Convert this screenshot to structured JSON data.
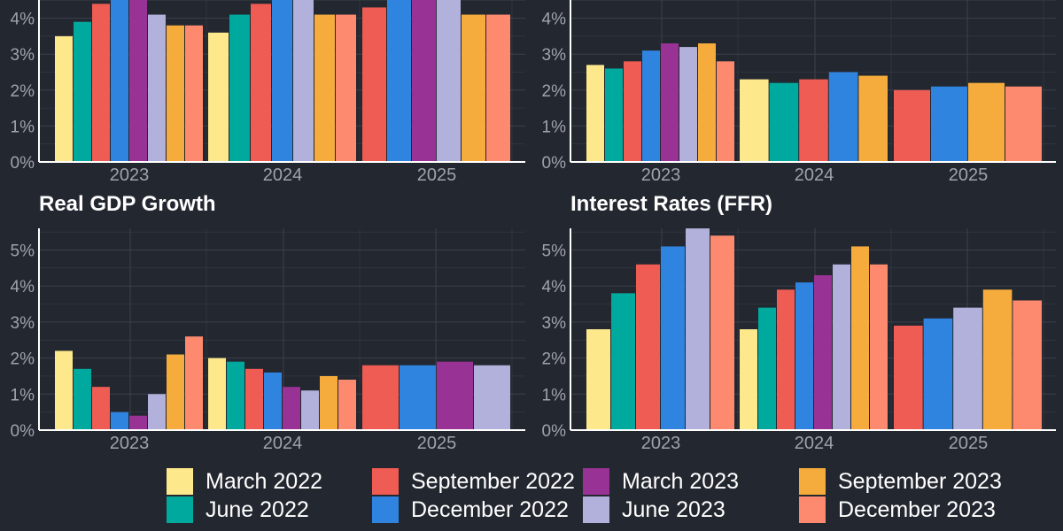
{
  "colors": {
    "background": "#232730",
    "grid": "#3b404b",
    "axis_line": "#ffffff",
    "tick_text": "#9ea3ad",
    "title_text": "#ffffff"
  },
  "legend": [
    {
      "label": "March 2022",
      "color": "#fde98c"
    },
    {
      "label": "June 2022",
      "color": "#00a99d"
    },
    {
      "label": "September 2022",
      "color": "#ef5c53"
    },
    {
      "label": "December 2022",
      "color": "#2f84e0"
    },
    {
      "label": "March 2023",
      "color": "#983294"
    },
    {
      "label": "June 2023",
      "color": "#b1b1db"
    },
    {
      "label": "September 2023",
      "color": "#f6ac3c"
    },
    {
      "label": "December 2023",
      "color": "#fd8a6e"
    }
  ],
  "chart_data": [
    {
      "type": "bar",
      "title": "",
      "categories": [
        "2023",
        "2024",
        "2025"
      ],
      "ylim": [
        0,
        5.6
      ],
      "yticks": [
        "0%",
        "1%",
        "2%",
        "3%",
        "4%"
      ],
      "ytick_values": [
        0,
        1,
        2,
        3,
        4
      ],
      "grid": true,
      "series": [
        {
          "name": "March 2022",
          "values": [
            3.5,
            3.6,
            null
          ]
        },
        {
          "name": "June 2022",
          "values": [
            3.9,
            4.1,
            null
          ]
        },
        {
          "name": "September 2022",
          "values": [
            4.4,
            4.4,
            4.3
          ]
        },
        {
          "name": "December 2022",
          "values": [
            5.0,
            5.0,
            5.0
          ]
        },
        {
          "name": "March 2023",
          "values": [
            5.0,
            null,
            5.0
          ]
        },
        {
          "name": "June 2023",
          "values": [
            4.1,
            5.0,
            5.0
          ]
        },
        {
          "name": "September 2023",
          "values": [
            3.8,
            4.1,
            4.1
          ]
        },
        {
          "name": "December 2023",
          "values": [
            3.8,
            4.1,
            4.1
          ]
        }
      ]
    },
    {
      "type": "bar",
      "title": "",
      "categories": [
        "2023",
        "2024",
        "2025"
      ],
      "ylim": [
        0,
        5.6
      ],
      "yticks": [
        "0%",
        "1%",
        "2%",
        "3%",
        "4%"
      ],
      "ytick_values": [
        0,
        1,
        2,
        3,
        4
      ],
      "grid": true,
      "series": [
        {
          "name": "March 2022",
          "values": [
            2.7,
            2.3,
            null
          ]
        },
        {
          "name": "June 2022",
          "values": [
            2.6,
            2.2,
            null
          ]
        },
        {
          "name": "September 2022",
          "values": [
            2.8,
            2.3,
            2.0
          ]
        },
        {
          "name": "December 2022",
          "values": [
            3.1,
            2.5,
            2.1
          ]
        },
        {
          "name": "March 2023",
          "values": [
            3.3,
            null,
            null
          ]
        },
        {
          "name": "June 2023",
          "values": [
            3.2,
            null,
            null
          ]
        },
        {
          "name": "September 2023",
          "values": [
            3.3,
            2.4,
            2.2
          ]
        },
        {
          "name": "December 2023",
          "values": [
            2.8,
            null,
            2.1
          ]
        }
      ]
    },
    {
      "type": "bar",
      "title": "Real GDP Growth",
      "categories": [
        "2023",
        "2024",
        "2025"
      ],
      "ylim": [
        0,
        5.6
      ],
      "yticks": [
        "0%",
        "1%",
        "2%",
        "3%",
        "4%",
        "5%"
      ],
      "ytick_values": [
        0,
        1,
        2,
        3,
        4,
        5
      ],
      "grid": true,
      "series": [
        {
          "name": "March 2022",
          "values": [
            2.2,
            2.0,
            null
          ]
        },
        {
          "name": "June 2022",
          "values": [
            1.7,
            1.9,
            null
          ]
        },
        {
          "name": "September 2022",
          "values": [
            1.2,
            1.7,
            1.8
          ]
        },
        {
          "name": "December 2022",
          "values": [
            0.5,
            1.6,
            1.8
          ]
        },
        {
          "name": "March 2023",
          "values": [
            0.4,
            1.2,
            1.9
          ]
        },
        {
          "name": "June 2023",
          "values": [
            1.0,
            1.1,
            1.8
          ]
        },
        {
          "name": "September 2023",
          "values": [
            2.1,
            1.5,
            null
          ]
        },
        {
          "name": "December 2023",
          "values": [
            2.6,
            1.4,
            null
          ]
        }
      ]
    },
    {
      "type": "bar",
      "title": "Interest Rates (FFR)",
      "categories": [
        "2023",
        "2024",
        "2025"
      ],
      "ylim": [
        0,
        5.6
      ],
      "yticks": [
        "0%",
        "1%",
        "2%",
        "3%",
        "4%",
        "5%"
      ],
      "ytick_values": [
        0,
        1,
        2,
        3,
        4,
        5
      ],
      "grid": true,
      "series": [
        {
          "name": "March 2022",
          "values": [
            2.8,
            2.8,
            null
          ]
        },
        {
          "name": "June 2022",
          "values": [
            3.8,
            3.4,
            null
          ]
        },
        {
          "name": "September 2022",
          "values": [
            4.6,
            3.9,
            2.9
          ]
        },
        {
          "name": "December 2022",
          "values": [
            5.1,
            4.1,
            3.1
          ]
        },
        {
          "name": "March 2023",
          "values": [
            null,
            4.3,
            null
          ]
        },
        {
          "name": "June 2023",
          "values": [
            5.6,
            4.6,
            3.4
          ]
        },
        {
          "name": "September 2023",
          "values": [
            null,
            5.1,
            3.9
          ]
        },
        {
          "name": "December 2023",
          "values": [
            5.4,
            4.6,
            3.6
          ]
        }
      ]
    }
  ]
}
